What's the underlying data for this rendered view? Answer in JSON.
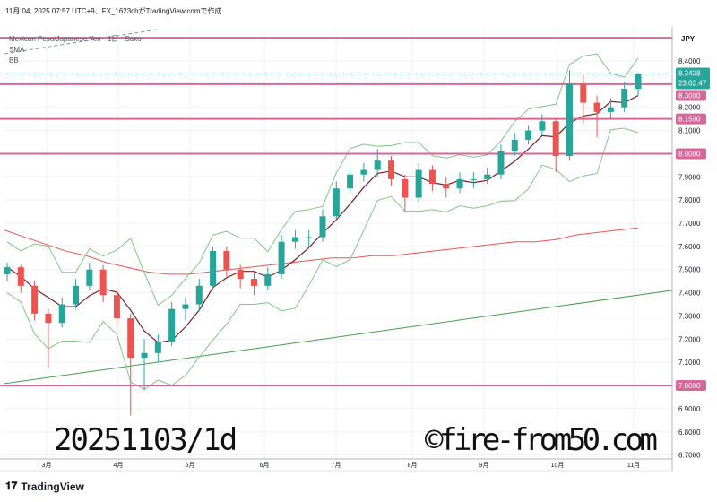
{
  "header": {
    "text": "11月 04, 2025 07:57 UTC+9、FX_1623chがTradingView.comで作成"
  },
  "legend": {
    "symbol": "Mexican Peso/Japanese Yen · 1日 · Saxo",
    "sma": "SMA",
    "bb": "BB"
  },
  "watermarks": {
    "left": "20251103/1d",
    "right": "©fire-from50.com"
  },
  "footer": {
    "brand": "TradingView",
    "logo_icon": "tradingview-logo-icon"
  },
  "colors": {
    "up": "#26a69a",
    "down": "#ef5350",
    "level": "#d9669b",
    "sma_short": "#7b1f2a",
    "sma_mid": "#ef5350",
    "sma_long": "#43a047",
    "bb": "#81c784",
    "last": "#26a69a"
  },
  "chart_data": {
    "type": "candlestick",
    "currency": "JPY",
    "ylim": [
      6.7,
      8.5
    ],
    "y_ticks": [
      "8.4000",
      "8.2000",
      "8.1000",
      "7.9000",
      "7.8000",
      "7.7000",
      "7.6000",
      "7.5000",
      "7.4000",
      "7.3000",
      "7.2000",
      "7.1000",
      "6.9000",
      "6.8000",
      "6.7000"
    ],
    "x_ticks": [
      "3月",
      "4月",
      "5月",
      "6月",
      "7月",
      "8月",
      "9月",
      "10月",
      "11月"
    ],
    "grid": true,
    "horizontal_levels": [
      {
        "value": 8.5,
        "label": ""
      },
      {
        "value": 8.3,
        "label": "8.3000"
      },
      {
        "value": 8.15,
        "label": "8.1500"
      },
      {
        "value": 8.0,
        "label": "8.0000"
      },
      {
        "value": 7.0,
        "label": "7.0000"
      }
    ],
    "last_price": {
      "value": 8.3438,
      "label": "8.3438",
      "countdown": "23:02:47"
    },
    "ohlc": [
      [
        7.48,
        7.53,
        7.45,
        7.51
      ],
      [
        7.51,
        7.52,
        7.4,
        7.43
      ],
      [
        7.43,
        7.45,
        7.28,
        7.31
      ],
      [
        7.31,
        7.33,
        7.08,
        7.27
      ],
      [
        7.27,
        7.38,
        7.25,
        7.35
      ],
      [
        7.35,
        7.46,
        7.33,
        7.43
      ],
      [
        7.43,
        7.53,
        7.41,
        7.5
      ],
      [
        7.5,
        7.52,
        7.36,
        7.39
      ],
      [
        7.39,
        7.41,
        7.26,
        7.29
      ],
      [
        7.29,
        7.31,
        6.87,
        7.12
      ],
      [
        7.12,
        7.2,
        6.98,
        7.14
      ],
      [
        7.14,
        7.22,
        7.1,
        7.19
      ],
      [
        7.19,
        7.36,
        7.17,
        7.33
      ],
      [
        7.33,
        7.38,
        7.28,
        7.35
      ],
      [
        7.35,
        7.46,
        7.32,
        7.43
      ],
      [
        7.43,
        7.6,
        7.41,
        7.58
      ],
      [
        7.58,
        7.6,
        7.47,
        7.5
      ],
      [
        7.5,
        7.52,
        7.42,
        7.46
      ],
      [
        7.46,
        7.49,
        7.39,
        7.43
      ],
      [
        7.43,
        7.51,
        7.41,
        7.48
      ],
      [
        7.48,
        7.65,
        7.46,
        7.62
      ],
      [
        7.62,
        7.67,
        7.59,
        7.64
      ],
      [
        7.64,
        7.67,
        7.6,
        7.64
      ],
      [
        7.64,
        7.76,
        7.62,
        7.73
      ],
      [
        7.73,
        7.88,
        7.71,
        7.85
      ],
      [
        7.85,
        7.94,
        7.83,
        7.91
      ],
      [
        7.91,
        7.96,
        7.88,
        7.93
      ],
      [
        7.93,
        8.02,
        7.9,
        7.97
      ],
      [
        7.97,
        7.99,
        7.86,
        7.89
      ],
      [
        7.89,
        7.91,
        7.75,
        7.81
      ],
      [
        7.81,
        7.96,
        7.79,
        7.93
      ],
      [
        7.93,
        7.95,
        7.84,
        7.87
      ],
      [
        7.87,
        7.9,
        7.81,
        7.85
      ],
      [
        7.85,
        7.92,
        7.83,
        7.89
      ],
      [
        7.89,
        7.92,
        7.85,
        7.89
      ],
      [
        7.89,
        7.94,
        7.87,
        7.91
      ],
      [
        7.91,
        8.04,
        7.89,
        8.01
      ],
      [
        8.01,
        8.09,
        7.99,
        8.06
      ],
      [
        8.06,
        8.12,
        8.04,
        8.1
      ],
      [
        8.1,
        8.17,
        8.08,
        8.14
      ],
      [
        8.14,
        8.15,
        7.92,
        7.99
      ],
      [
        7.99,
        8.36,
        7.97,
        8.3
      ],
      [
        8.3,
        8.34,
        8.13,
        8.22
      ],
      [
        8.22,
        8.25,
        8.07,
        8.18
      ],
      [
        8.18,
        8.24,
        8.15,
        8.2
      ],
      [
        8.2,
        8.31,
        8.18,
        8.28
      ],
      [
        8.28,
        8.35,
        8.25,
        8.3438
      ]
    ],
    "sma_mid": [
      7.67,
      7.64,
      7.61,
      7.58,
      7.56,
      7.53,
      7.51,
      7.49,
      7.48,
      7.48,
      7.49,
      7.5,
      7.51,
      7.52,
      7.53,
      7.54,
      7.55,
      7.55,
      7.56,
      7.56,
      7.57,
      7.58,
      7.59,
      7.6,
      7.61,
      7.62,
      7.62,
      7.63,
      7.65,
      7.66,
      7.67,
      7.68
    ],
    "sma_long": [
      7.01,
      7.39
    ]
  }
}
